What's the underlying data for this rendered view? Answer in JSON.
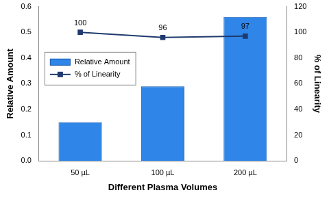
{
  "chart_data": {
    "type": "bar",
    "categories": [
      "50 µL",
      "100 µL",
      "200 µL"
    ],
    "x_label": "Different Plasma Volumes",
    "y_label": "Relative Amount",
    "y2_label": "% of Linearity",
    "ylim": [
      0,
      0.6
    ],
    "yticks": [
      {
        "value": 0,
        "label": "0.0"
      },
      0.1,
      0.2,
      0.3,
      0.4,
      0.5,
      0.6
    ],
    "y2lim": [
      0,
      120
    ],
    "y2ticks": [
      0,
      20,
      40,
      60,
      80,
      100,
      120
    ],
    "grid": false,
    "legend": "left",
    "series": [
      {
        "name": "Relative Amount",
        "type": "bar",
        "color": "#2f86e8",
        "values": [
          0.15,
          0.29,
          0.56
        ]
      },
      {
        "name": "% of Linearity",
        "type": "line",
        "axis": "y2",
        "color": "#1f3a6e",
        "marker": "square",
        "values": [
          100,
          96,
          97
        ],
        "data_labels": true
      }
    ]
  }
}
